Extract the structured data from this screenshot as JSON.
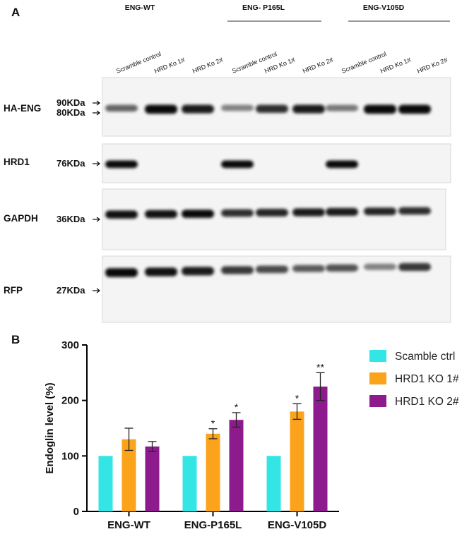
{
  "panel_a": {
    "letter": "A",
    "groups": [
      "ENG-WT",
      "ENG- P165L",
      "ENG-V105D"
    ],
    "lanes": [
      "Scramble control",
      "HRD Ko 1#",
      "HRD Ko 2#",
      "Scramble control",
      "HRD Ko 1#",
      "HRD Ko 2#",
      "Scramble control",
      "HRD Ko 1#",
      "HRD Ko 2#"
    ],
    "blots": [
      {
        "protein": "HA-ENG",
        "markers": [
          "90KDa",
          "80KDa"
        ],
        "intensities": [
          0.45,
          0.95,
          0.85,
          0.3,
          0.75,
          0.85,
          0.35,
          0.95,
          0.95
        ]
      },
      {
        "protein": "HRD1",
        "markers": [
          "76KDa"
        ],
        "intensities": [
          0.95,
          0,
          0,
          0.95,
          0,
          0,
          0.95,
          0,
          0
        ]
      },
      {
        "protein": "GAPDH",
        "markers": [
          "36KDa"
        ],
        "intensities": [
          0.9,
          0.9,
          0.95,
          0.75,
          0.8,
          0.85,
          0.85,
          0.8,
          0.75
        ]
      },
      {
        "protein": "RFP",
        "markers": [
          "27KDa"
        ],
        "intensities": [
          0.95,
          0.9,
          0.85,
          0.7,
          0.6,
          0.5,
          0.55,
          0.3,
          0.7
        ]
      }
    ]
  },
  "panel_b": {
    "letter": "B",
    "chart_data": {
      "type": "bar",
      "categories": [
        "ENG-WT",
        "ENG-P165L",
        "ENG-V105D"
      ],
      "series": [
        {
          "name": "Scamble ctrl",
          "color": "#33e5e5",
          "values": [
            100,
            100,
            100
          ],
          "errors": [
            0,
            0,
            0
          ],
          "sig": [
            "",
            "",
            ""
          ]
        },
        {
          "name": "HRD1 KO 1#",
          "color": "#fca31c",
          "values": [
            130,
            140,
            180
          ],
          "errors": [
            20,
            9,
            14
          ],
          "sig": [
            "",
            "*",
            "*"
          ]
        },
        {
          "name": "HRD1 KO 2#",
          "color": "#8e1b8d",
          "values": [
            117,
            165,
            225
          ],
          "errors": [
            9,
            13,
            25
          ],
          "sig": [
            "",
            "*",
            "**"
          ]
        }
      ],
      "ylabel": "Endoglin level (%)",
      "yticks": [
        0,
        100,
        200,
        300
      ],
      "ylim": [
        0,
        300
      ],
      "legend": "right"
    }
  }
}
